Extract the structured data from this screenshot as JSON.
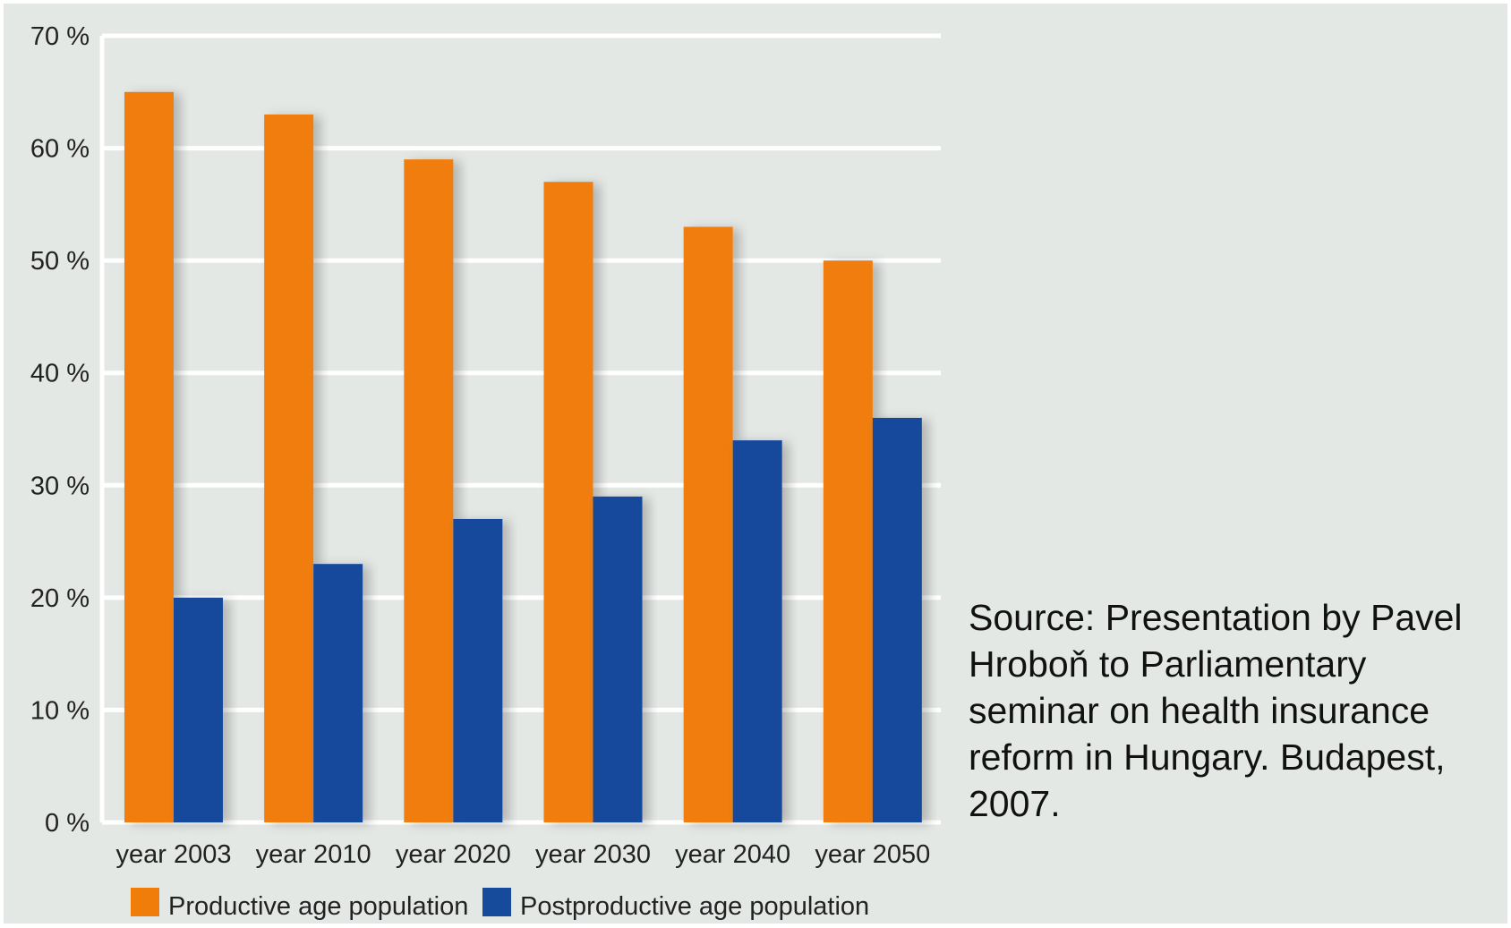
{
  "chart_data": {
    "type": "bar",
    "categories": [
      "year 2003",
      "year 2010",
      "year 2020",
      "year 2030",
      "year 2040",
      "year 2050"
    ],
    "series": [
      {
        "name": "Productive age population",
        "values": [
          65,
          63,
          59,
          57,
          53,
          50
        ],
        "color": "#f07d0a"
      },
      {
        "name": "Postproductive age population",
        "values": [
          20,
          23,
          27,
          29,
          34,
          36
        ],
        "color": "#164a9b"
      }
    ],
    "ylim": [
      0,
      70
    ],
    "yticks": [
      0,
      10,
      20,
      30,
      40,
      50,
      60,
      70
    ],
    "ytick_labels": [
      "0 %",
      "10 %",
      "20 %",
      "30 %",
      "40 %",
      "50 %",
      "60 %",
      "70 %"
    ],
    "grid": true,
    "legend": "bottom",
    "title": "",
    "xlabel": "",
    "ylabel": ""
  },
  "source_note": "Source: Presentation by Pavel Hroboň to Parliamentary seminar on health insurance reform in Hungary.  Budapest, 2007.",
  "colors": {
    "background": "#e4e8e5",
    "grid": "#ffffff",
    "text": "#222222"
  }
}
